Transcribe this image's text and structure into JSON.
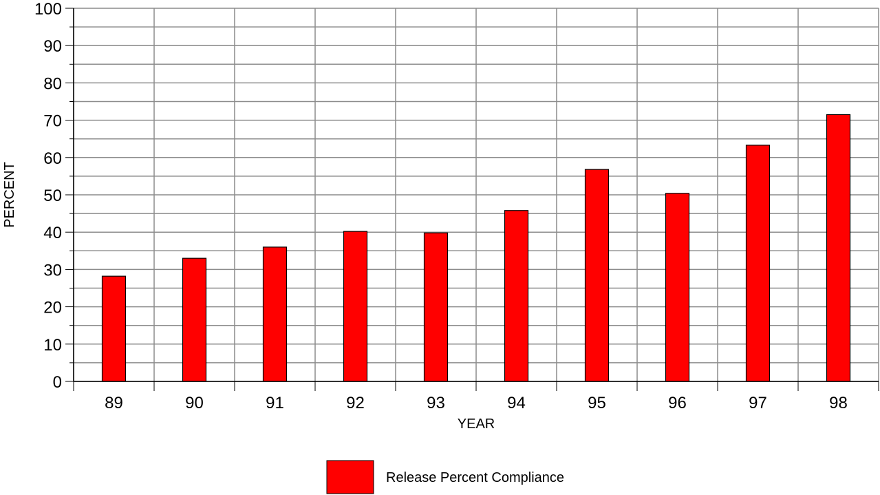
{
  "chart_data": {
    "type": "bar",
    "categories": [
      "89",
      "90",
      "91",
      "92",
      "93",
      "94",
      "95",
      "96",
      "97",
      "98"
    ],
    "series": [
      {
        "name": "Release Percent Compliance",
        "color": "#ff0000",
        "values": [
          28.2,
          33.0,
          36.0,
          40.2,
          39.8,
          45.8,
          56.8,
          50.4,
          63.3,
          71.5
        ]
      }
    ],
    "xlabel": "YEAR",
    "ylabel": "PERCENT",
    "ylim": [
      0,
      100
    ],
    "yticks": [
      0,
      10,
      20,
      30,
      40,
      50,
      60,
      70,
      80,
      90,
      100
    ],
    "grid": true,
    "legend_position": "bottom-center"
  }
}
